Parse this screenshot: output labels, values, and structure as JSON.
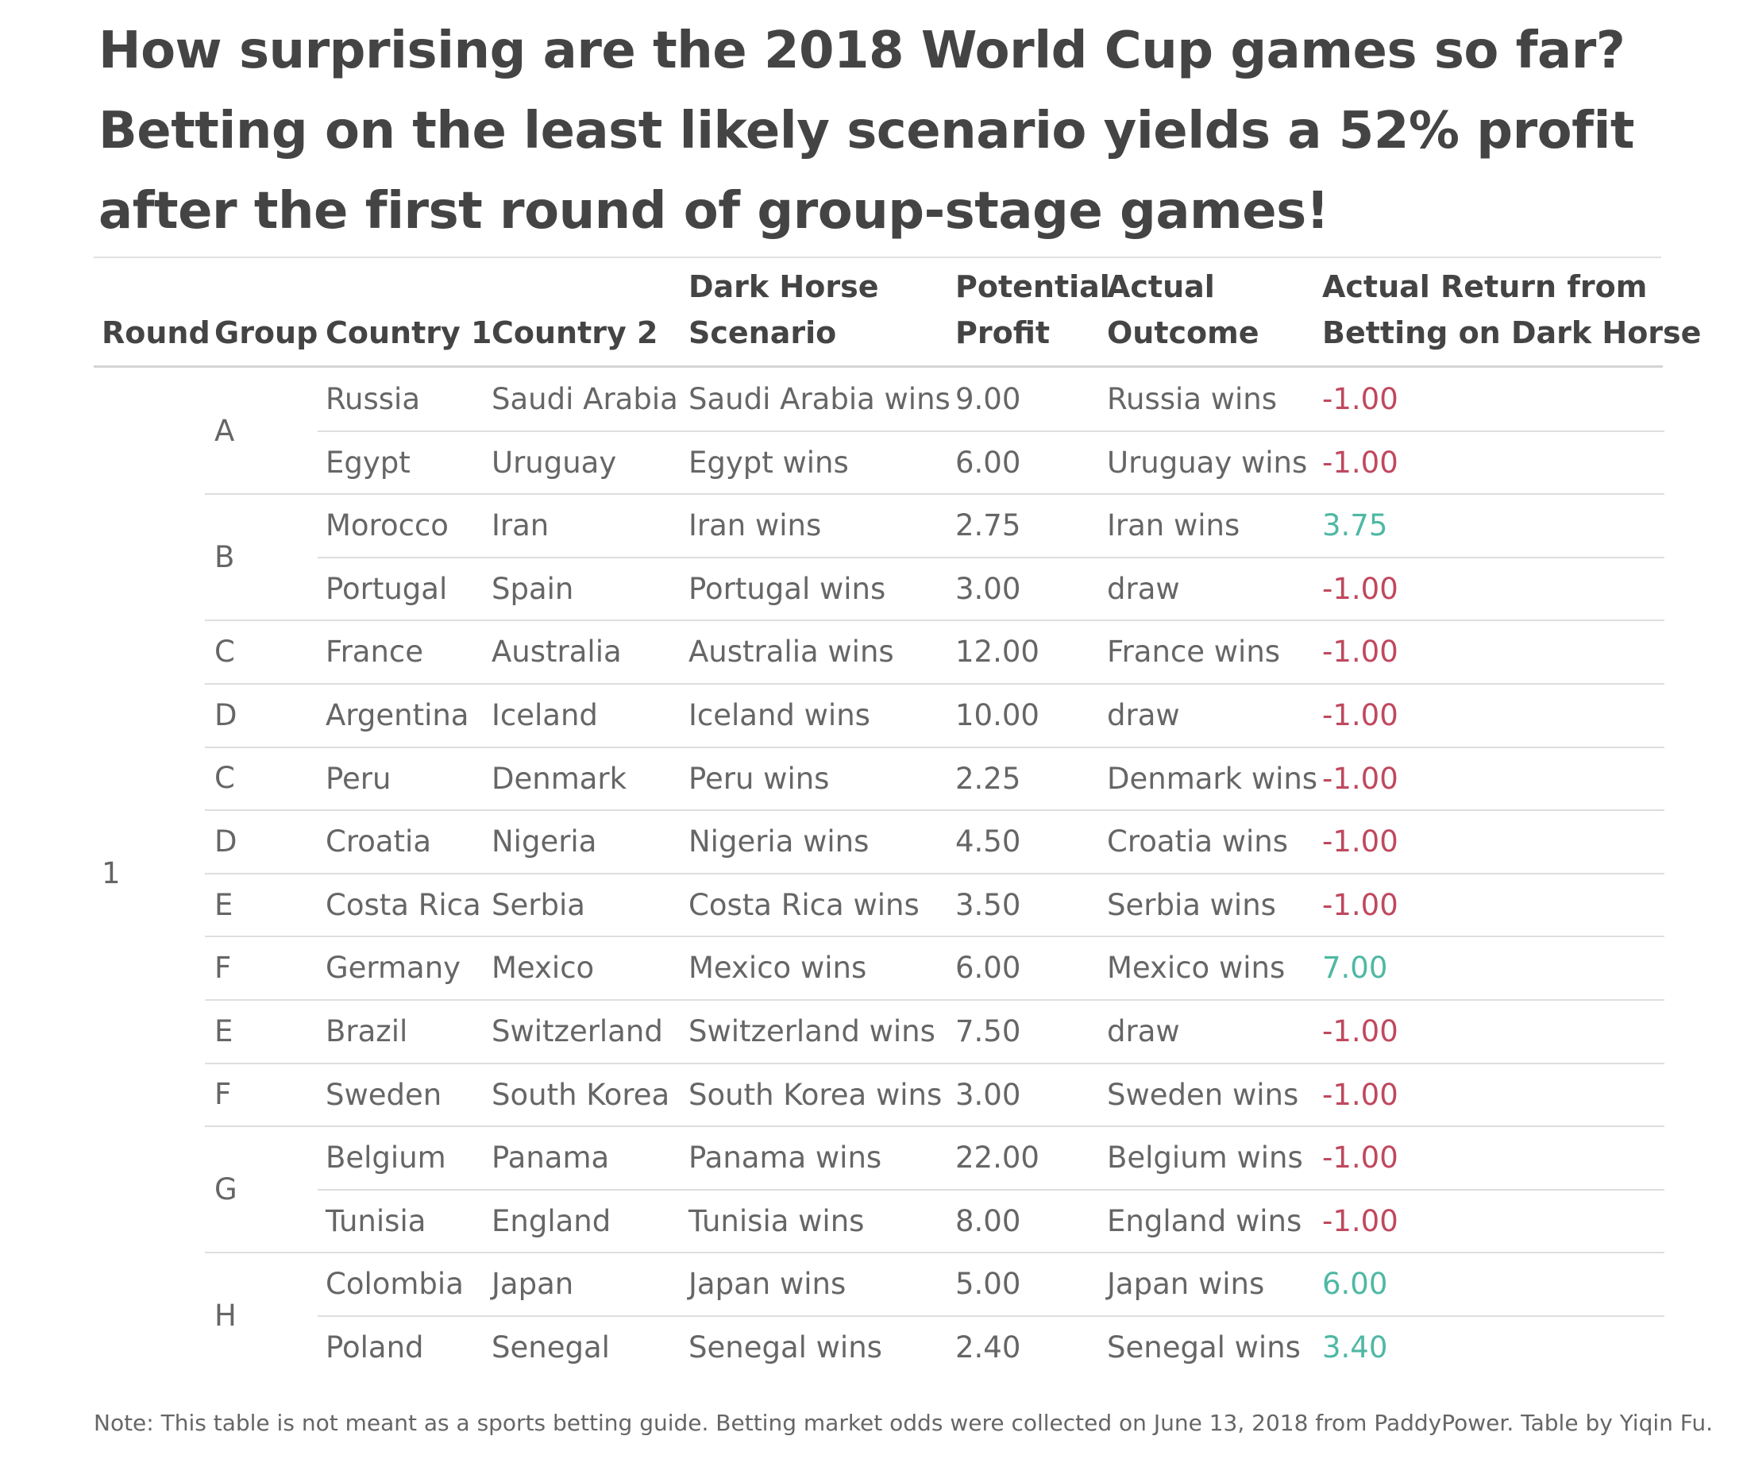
{
  "title_lines": [
    "How surprising are the 2018 World Cup games so far?",
    "Betting on the least likely scenario yields a 52% profit",
    "after the first round of group-stage games!"
  ],
  "headers": {
    "round": "Round",
    "group": "Group",
    "country1": "Country 1",
    "country2": "Country 2",
    "dark_horse_1": "Dark Horse",
    "dark_horse_2": "Scenario",
    "profit_1": "Potential",
    "profit_2": "Profit",
    "outcome_1": "Actual",
    "outcome_2": "Outcome",
    "return_1": "Actual Return from",
    "return_2": "Betting on Dark Horse"
  },
  "round_value": "1",
  "group_labels": [
    {
      "label": "A",
      "start": 0,
      "span": 2
    },
    {
      "label": "B",
      "start": 2,
      "span": 2
    },
    {
      "label": "C",
      "start": 4,
      "span": 1
    },
    {
      "label": "D",
      "start": 5,
      "span": 1
    },
    {
      "label": "C",
      "start": 6,
      "span": 1
    },
    {
      "label": "D",
      "start": 7,
      "span": 1
    },
    {
      "label": "E",
      "start": 8,
      "span": 1
    },
    {
      "label": "F",
      "start": 9,
      "span": 1
    },
    {
      "label": "E",
      "start": 10,
      "span": 1
    },
    {
      "label": "F",
      "start": 11,
      "span": 1
    },
    {
      "label": "G",
      "start": 12,
      "span": 2
    },
    {
      "label": "H",
      "start": 14,
      "span": 2
    }
  ],
  "chart_data": {
    "type": "table",
    "rows": [
      {
        "group": "A",
        "country1": "Russia",
        "country2": "Saudi Arabia",
        "scenario": "Saudi Arabia wins",
        "profit": "9.00",
        "outcome": "Russia wins",
        "return": "-1.00"
      },
      {
        "group": "A",
        "country1": "Egypt",
        "country2": "Uruguay",
        "scenario": "Egypt wins",
        "profit": "6.00",
        "outcome": "Uruguay wins",
        "return": "-1.00"
      },
      {
        "group": "B",
        "country1": "Morocco",
        "country2": "Iran",
        "scenario": "Iran wins",
        "profit": "2.75",
        "outcome": "Iran wins",
        "return": "3.75"
      },
      {
        "group": "B",
        "country1": "Portugal",
        "country2": "Spain",
        "scenario": "Portugal wins",
        "profit": "3.00",
        "outcome": "draw",
        "return": "-1.00"
      },
      {
        "group": "C",
        "country1": "France",
        "country2": "Australia",
        "scenario": "Australia wins",
        "profit": "12.00",
        "outcome": "France wins",
        "return": "-1.00"
      },
      {
        "group": "D",
        "country1": "Argentina",
        "country2": "Iceland",
        "scenario": "Iceland wins",
        "profit": "10.00",
        "outcome": "draw",
        "return": "-1.00"
      },
      {
        "group": "C",
        "country1": "Peru",
        "country2": "Denmark",
        "scenario": "Peru wins",
        "profit": "2.25",
        "outcome": "Denmark wins",
        "return": "-1.00"
      },
      {
        "group": "D",
        "country1": "Croatia",
        "country2": "Nigeria",
        "scenario": "Nigeria wins",
        "profit": "4.50",
        "outcome": "Croatia wins",
        "return": "-1.00"
      },
      {
        "group": "E",
        "country1": "Costa Rica",
        "country2": "Serbia",
        "scenario": "Costa Rica wins",
        "profit": "3.50",
        "outcome": "Serbia wins",
        "return": "-1.00"
      },
      {
        "group": "F",
        "country1": "Germany",
        "country2": "Mexico",
        "scenario": "Mexico wins",
        "profit": "6.00",
        "outcome": "Mexico wins",
        "return": "7.00"
      },
      {
        "group": "E",
        "country1": "Brazil",
        "country2": "Switzerland",
        "scenario": "Switzerland wins",
        "profit": "7.50",
        "outcome": "draw",
        "return": "-1.00"
      },
      {
        "group": "F",
        "country1": "Sweden",
        "country2": "South Korea",
        "scenario": "South Korea wins",
        "profit": "3.00",
        "outcome": "Sweden wins",
        "return": "-1.00"
      },
      {
        "group": "G",
        "country1": "Belgium",
        "country2": "Panama",
        "scenario": "Panama wins",
        "profit": "22.00",
        "outcome": "Belgium wins",
        "return": "-1.00"
      },
      {
        "group": "G",
        "country1": "Tunisia",
        "country2": "England",
        "scenario": "Tunisia wins",
        "profit": "8.00",
        "outcome": "England wins",
        "return": "-1.00"
      },
      {
        "group": "H",
        "country1": "Colombia",
        "country2": "Japan",
        "scenario": "Japan wins",
        "profit": "5.00",
        "outcome": "Japan wins",
        "return": "6.00"
      },
      {
        "group": "H",
        "country1": "Poland",
        "country2": "Senegal",
        "scenario": "Senegal wins",
        "profit": "2.40",
        "outcome": "Senegal wins",
        "return": "3.40"
      }
    ]
  },
  "colors": {
    "negative_return": "#c0485e",
    "positive_return": "#4fb8a4",
    "title": "#444444",
    "body_text": "#666666"
  },
  "note": "Note: This table is not meant as a sports betting guide. Betting market odds were collected on June 13, 2018 from PaddyPower. Table by Yiqin Fu."
}
